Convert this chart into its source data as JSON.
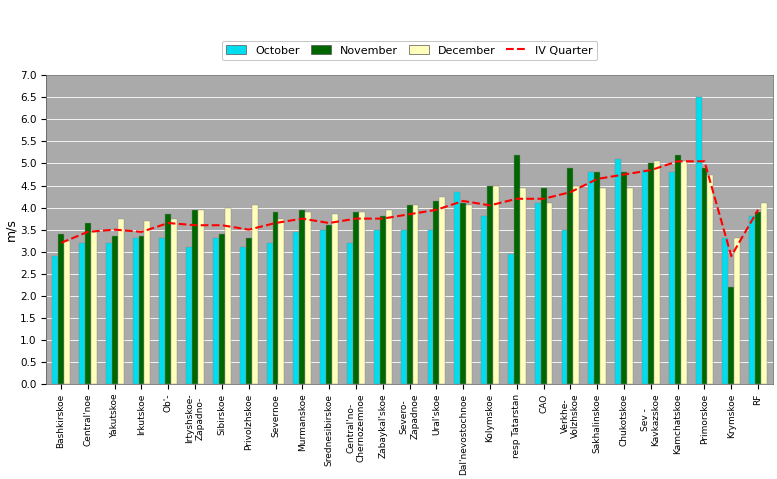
{
  "categories": [
    "Bashkirskoe",
    "Central’noe",
    "Yakutskoe",
    "Irkutskoe",
    "Ob’-",
    "Irtyshskoe-\nZapadno-",
    "Sibirskoe",
    "Privolzhskoe",
    "Severnoe",
    "Murmanskoe",
    "Srednesibirskoe",
    "Central’no-\nChernozemnoe",
    "Zabaykal’skoe",
    "Severo-\nZapadnoe",
    "Ural’skoe",
    "Dal’nevostochnoe",
    "Kolymskoe",
    "resp Tatarstan",
    "CAO",
    "Verkhe-\nVolzhskoe",
    "Sakhalinskoe",
    "Chukotskoe",
    "Sev -\nKavkazskoe",
    "Kamchatskoe",
    "Primorskoe",
    "Krymskoe",
    "RF"
  ],
  "october": [
    2.9,
    3.2,
    3.2,
    3.3,
    3.3,
    3.1,
    3.3,
    3.1,
    3.2,
    3.45,
    3.5,
    3.2,
    3.5,
    3.5,
    3.5,
    4.35,
    3.8,
    2.95,
    4.1,
    3.5,
    4.8,
    5.1,
    4.85,
    4.8,
    6.5,
    3.3,
    3.8
  ],
  "november": [
    3.4,
    3.65,
    3.35,
    3.35,
    3.85,
    3.95,
    3.4,
    3.3,
    3.9,
    3.95,
    3.6,
    3.9,
    3.8,
    4.05,
    4.15,
    4.1,
    4.5,
    5.2,
    4.45,
    4.9,
    4.8,
    4.8,
    5.0,
    5.2,
    4.9,
    2.2,
    3.9
  ],
  "december": [
    3.25,
    3.45,
    3.75,
    3.7,
    3.75,
    3.95,
    4.0,
    4.05,
    3.75,
    3.9,
    3.85,
    3.9,
    3.95,
    4.05,
    4.25,
    4.05,
    4.5,
    4.45,
    4.1,
    4.5,
    4.45,
    4.45,
    5.05,
    5.05,
    4.75,
    3.3,
    4.1
  ],
  "iv_quarter": [
    3.2,
    3.45,
    3.5,
    3.45,
    3.65,
    3.6,
    3.6,
    3.5,
    3.65,
    3.75,
    3.65,
    3.75,
    3.75,
    3.85,
    3.95,
    4.15,
    4.05,
    4.2,
    4.2,
    4.35,
    4.65,
    4.75,
    4.85,
    5.05,
    5.05,
    2.9,
    3.95
  ],
  "bar_color_oct": "#00DDEE",
  "bar_color_nov": "#006600",
  "bar_color_dec": "#FFFFBB",
  "line_color_iv": "#FF0000",
  "plot_bg": "#AAAAAA",
  "fig_bg": "#FFFFFF",
  "ylabel": "m/s",
  "ylim": [
    0,
    7.0
  ],
  "yticks": [
    0,
    0.5,
    1.0,
    1.5,
    2.0,
    2.5,
    3.0,
    3.5,
    4.0,
    4.5,
    5.0,
    5.5,
    6.0,
    6.5,
    7.0
  ],
  "bar_width": 0.22,
  "legend_labels": [
    "October",
    "November",
    "December",
    "IV Quarter"
  ]
}
